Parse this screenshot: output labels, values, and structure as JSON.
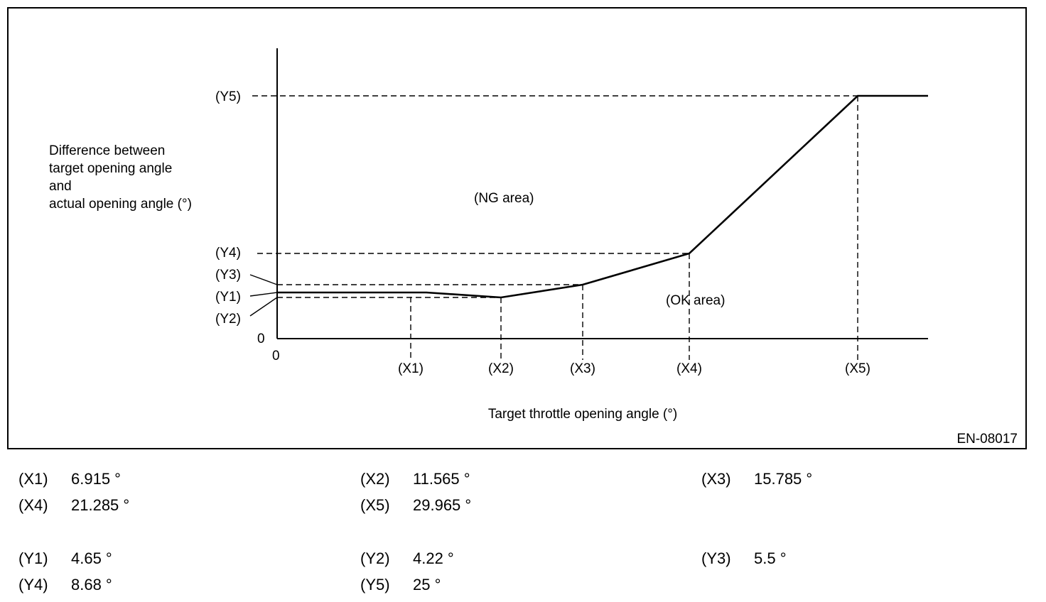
{
  "diagram": {
    "y_axis_title": [
      "Difference between",
      "target opening angle",
      "and",
      "actual opening angle (°)"
    ],
    "x_axis_title": "Target throttle opening angle (°)",
    "ng_area_label": "(NG area)",
    "ok_area_label": "(OK area)",
    "code": "EN-08017",
    "origin_x_label": "0",
    "origin_y_label": "0",
    "x_tick_labels": [
      "(X1)",
      "(X2)",
      "(X3)",
      "(X4)",
      "(X5)"
    ],
    "y_tick_labels": [
      "(Y5)",
      "(Y4)",
      "(Y3)",
      "(Y1)",
      "(Y2)"
    ]
  },
  "legend": {
    "x": [
      {
        "label": "(X1)",
        "value": "6.915 °"
      },
      {
        "label": "(X2)",
        "value": "11.565 °"
      },
      {
        "label": "(X3)",
        "value": "15.785 °"
      },
      {
        "label": "(X4)",
        "value": "21.285 °"
      },
      {
        "label": "(X5)",
        "value": "29.965 °"
      }
    ],
    "y": [
      {
        "label": "(Y1)",
        "value": "4.65 °"
      },
      {
        "label": "(Y2)",
        "value": "4.22 °"
      },
      {
        "label": "(Y3)",
        "value": "5.5 °"
      },
      {
        "label": "(Y4)",
        "value": "8.68 °"
      },
      {
        "label": "(Y5)",
        "value": "25 °"
      }
    ]
  }
}
